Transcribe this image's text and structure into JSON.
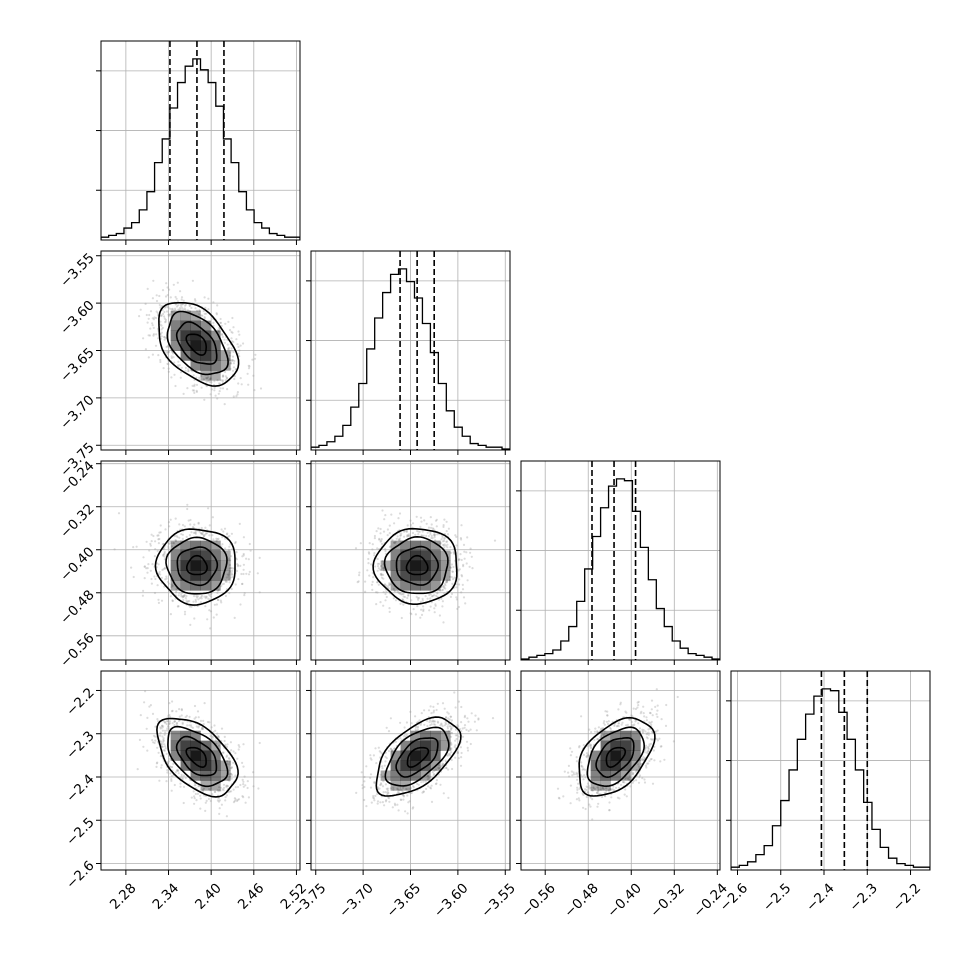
{
  "chart_data": {
    "type": "corner",
    "variables": [
      {
        "ticks": [
          "2.28",
          "2.34",
          "2.40",
          "2.46",
          "2.52"
        ],
        "tick_values": [
          2.28,
          2.34,
          2.4,
          2.46,
          2.52
        ],
        "range": [
          2.245,
          2.525
        ],
        "mean": 2.38,
        "sd": 0.028,
        "quantiles": [
          2.342,
          2.38,
          2.418
        ],
        "hist": [
          1,
          2,
          3,
          6,
          9,
          16,
          26,
          42,
          55,
          72,
          86,
          95,
          99,
          93,
          86,
          73,
          55,
          42,
          26,
          16,
          9,
          6,
          3,
          2,
          1,
          1
        ]
      },
      {
        "ticks": [
          "-3.75",
          "-3.70",
          "-3.65",
          "-3.60",
          "-3.55"
        ],
        "tick_values": [
          -3.75,
          -3.7,
          -3.65,
          -3.6,
          -3.55
        ],
        "range": [
          -3.755,
          -3.545
        ],
        "mean": -3.643,
        "sd": 0.022,
        "quantiles": [
          -3.661,
          -3.643,
          -3.625
        ],
        "hist": [
          1,
          2,
          4,
          7,
          13,
          23,
          36,
          55,
          72,
          86,
          96,
          99,
          92,
          83,
          69,
          53,
          36,
          21,
          12,
          7,
          3,
          2,
          1,
          1,
          0
        ]
      },
      {
        "ticks": [
          "-0.56",
          "-0.48",
          "-0.40",
          "-0.32",
          "-0.24"
        ],
        "tick_values": [
          -0.56,
          -0.48,
          -0.4,
          -0.32,
          -0.24
        ],
        "range": [
          -0.605,
          -0.235
        ],
        "mean": -0.43,
        "sd": 0.035,
        "quantiles": [
          -0.473,
          -0.432,
          -0.392
        ],
        "hist": [
          0,
          1,
          2,
          3,
          5,
          10,
          18,
          32,
          50,
          68,
          84,
          96,
          100,
          99,
          82,
          62,
          44,
          28,
          18,
          10,
          6,
          3,
          2,
          1,
          0
        ]
      },
      {
        "ticks": [
          "-2.6",
          "-2.5",
          "-2.4",
          "-2.3",
          "-2.2"
        ],
        "tick_values": [
          -2.6,
          -2.5,
          -2.4,
          -2.3,
          -2.2
        ],
        "range": [
          -2.615,
          -2.155
        ],
        "mean": -2.353,
        "sd": 0.045,
        "quantiles": [
          -2.406,
          -2.353,
          -2.3
        ],
        "hist": [
          1,
          2,
          4,
          8,
          13,
          24,
          38,
          55,
          72,
          86,
          96,
          100,
          99,
          87,
          72,
          55,
          37,
          22,
          12,
          6,
          3,
          2,
          1,
          1
        ]
      }
    ],
    "correlations": {
      "1-0": -0.45,
      "2-0": 0.0,
      "2-1": 0.0,
      "3-0": -0.5,
      "3-1": 0.55,
      "3-2": 0.45
    },
    "contour_levels_sigma": [
      0.5,
      1.0,
      1.5,
      2.0
    ],
    "grid": true,
    "colors": {
      "hist_line": "#000000",
      "contour": "#000000",
      "scatter": "#9a9a9a",
      "grid": "#b0b0b0",
      "density": "#000000"
    }
  }
}
